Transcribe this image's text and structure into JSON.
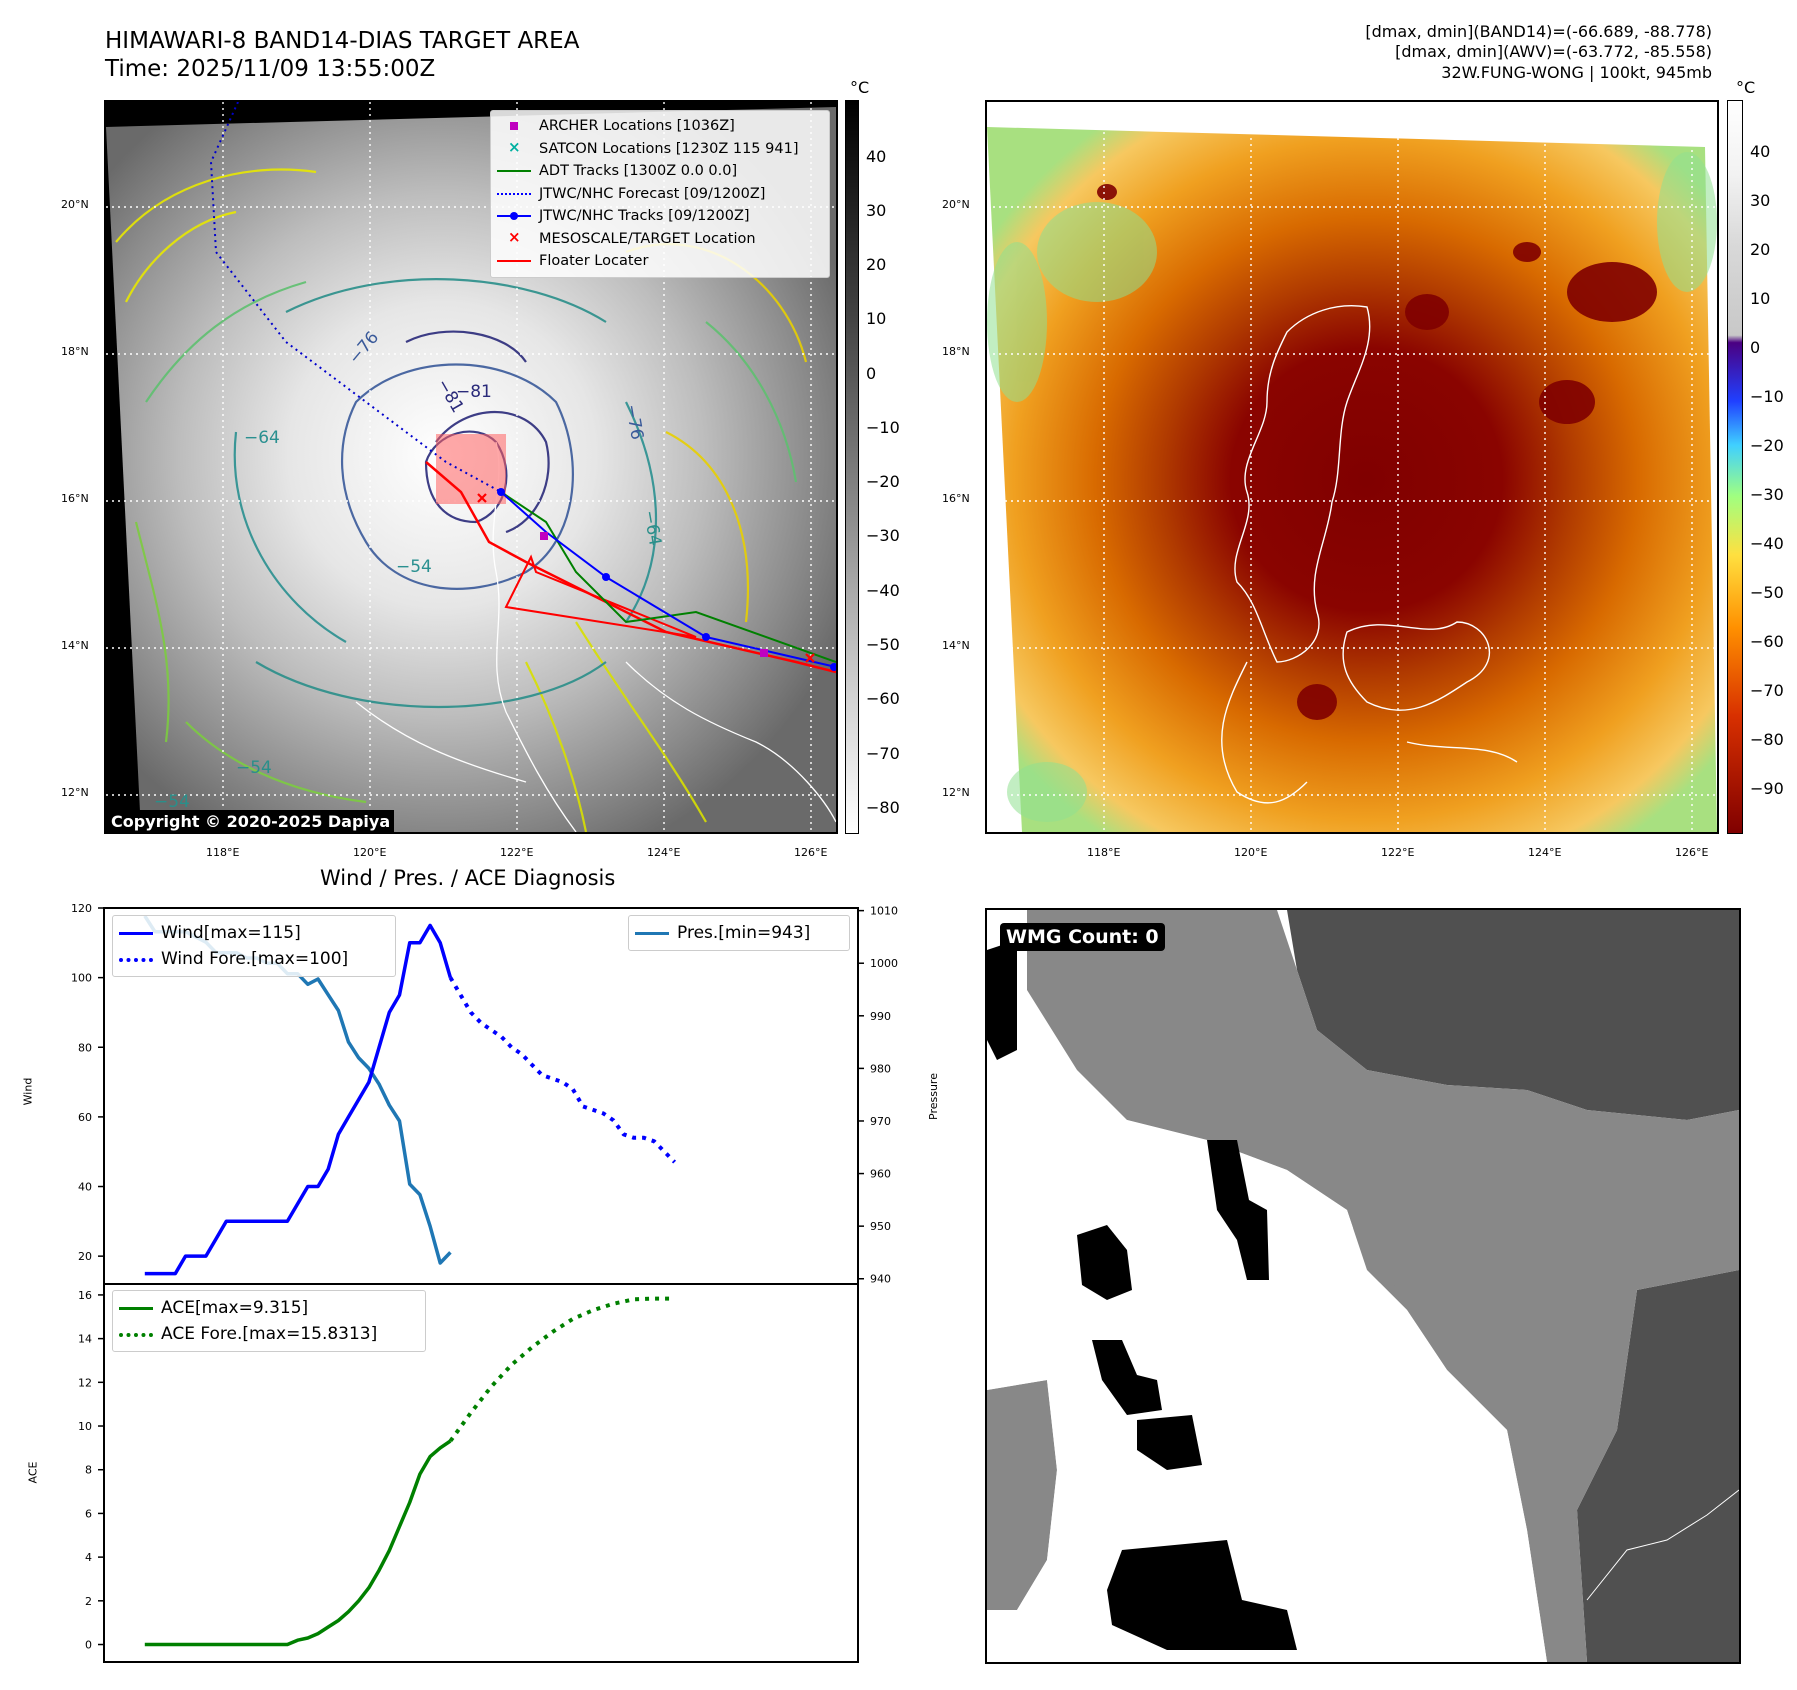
{
  "header": {
    "title_line1": "HIMAWARI-8 BAND14-DIAS TARGET AREA",
    "title_line2": "Time: 2025/11/09 13:55:00Z",
    "info_line1": "[dmax, dmin](BAND14)=(-66.689, -88.778)",
    "info_line2": "[dmax, dmin](AWV)=(-63.772, -85.558)",
    "info_line3": "32W.FUNG-WONG | 100kt, 945mb"
  },
  "map_axes": {
    "lon_labels": [
      "118°E",
      "120°E",
      "122°E",
      "124°E",
      "126°E"
    ],
    "lat_labels": [
      "20°N",
      "18°N",
      "16°N",
      "14°N",
      "12°N"
    ]
  },
  "colorbar_gray": {
    "unit": "°C",
    "ticks": [
      "40",
      "30",
      "20",
      "10",
      "0",
      "−10",
      "−20",
      "−30",
      "−40",
      "−50",
      "−60",
      "−70",
      "−80"
    ]
  },
  "colorbar_color": {
    "unit": "°C",
    "ticks": [
      "40",
      "30",
      "20",
      "10",
      "0",
      "−10",
      "−20",
      "−30",
      "−40",
      "−50",
      "−60",
      "−70",
      "−80",
      "−90"
    ]
  },
  "legend_map": [
    {
      "label": "ARCHER Locations [1036Z]",
      "symbol": "square-marker",
      "color": "#c000c0"
    },
    {
      "label": "SATCON Locations [1230Z 115 941]",
      "symbol": "x-marker",
      "color": "#00b0a0"
    },
    {
      "label": "ADT Tracks [1300Z 0.0 0.0]",
      "symbol": "line",
      "color": "#008000"
    },
    {
      "label": "JTWC/NHC Forecast [09/1200Z]",
      "symbol": "dotted-line",
      "color": "#0000ff"
    },
    {
      "label": "JTWC/NHC Tracks [09/1200Z]",
      "symbol": "line-dot",
      "color": "#0000ff"
    },
    {
      "label": "MESOSCALE/TARGET Location",
      "symbol": "x-marker",
      "color": "#ff0000"
    },
    {
      "label": "Floater Locater",
      "symbol": "line",
      "color": "#ff0000"
    }
  ],
  "contour_labels": [
    "−81",
    "−76",
    "−81",
    "−64",
    "−76",
    "−64",
    "−54",
    "−54",
    "−54"
  ],
  "copyright": "Copyright © 2020-2025 Dapiya",
  "wmg": {
    "label": "WMG Count: 0"
  },
  "chart_data": [
    {
      "type": "line",
      "title": "Wind / Pres. / ACE Diagnosis",
      "ylabel": "Wind",
      "ylim": [
        12,
        120
      ],
      "yticks": [
        20,
        40,
        60,
        80,
        100,
        120
      ],
      "y2label": "Pressure",
      "y2lim": [
        939,
        1010.5
      ],
      "y2ticks": [
        940,
        950,
        960,
        970,
        980,
        990,
        1000,
        1010
      ],
      "x": [
        0,
        1,
        2,
        3,
        4,
        5,
        6,
        7,
        8,
        9,
        10,
        11,
        12,
        13,
        14,
        15,
        16,
        17,
        18,
        19,
        20,
        21,
        22,
        23,
        24,
        25,
        26,
        27,
        28,
        29,
        30,
        31,
        32,
        33,
        34,
        35,
        36,
        37,
        38,
        39,
        40,
        41,
        42,
        43,
        44,
        45,
        46,
        47,
        48,
        49,
        50,
        51,
        52,
        53,
        54
      ],
      "series": [
        {
          "name": "Wind",
          "legend": "Wind[max=115]",
          "axis": "left",
          "color": "#0000ff",
          "style": "solid",
          "x": [
            0,
            2,
            3,
            4,
            5,
            6,
            7,
            8,
            9,
            10,
            11,
            12,
            13,
            14,
            15,
            16,
            17,
            18,
            19,
            20,
            21,
            22,
            23,
            24,
            25,
            26,
            27,
            28,
            29,
            30
          ],
          "values": [
            15,
            15,
            15,
            20,
            20,
            20,
            25,
            30,
            30,
            30,
            30,
            30,
            30,
            30,
            35,
            40,
            40,
            45,
            55,
            60,
            65,
            70,
            80,
            90,
            95,
            110,
            110,
            115,
            110,
            100
          ]
        },
        {
          "name": "Wind Fore.",
          "legend": "Wind Fore.[max=100]",
          "axis": "left",
          "color": "#0000ff",
          "style": "dotted",
          "x": [
            30,
            31,
            32,
            33,
            34,
            35,
            36,
            37,
            38,
            39,
            40,
            41,
            42,
            43,
            44,
            45,
            46,
            47,
            48,
            49,
            50,
            51,
            52
          ],
          "values": [
            100,
            95,
            90,
            87,
            85,
            83,
            80,
            78,
            75,
            72,
            71,
            70,
            68,
            63,
            62,
            61,
            59,
            55,
            54,
            54,
            53,
            50,
            47
          ]
        },
        {
          "name": "Pres.",
          "legend": "Pres.[min=943]",
          "axis": "right",
          "color": "#1f77b4",
          "style": "solid",
          "x": [
            0,
            1,
            2,
            3,
            4,
            5,
            6,
            7,
            8,
            9,
            10,
            11,
            12,
            13,
            14,
            15,
            16,
            17,
            18,
            19,
            20,
            21,
            22,
            23,
            24,
            25,
            26,
            27,
            28,
            29,
            30
          ],
          "values": [
            1009,
            1006,
            1006,
            1006,
            1006,
            1005,
            1004,
            1002,
            1002,
            1002,
            1001,
            1001,
            1000,
            1000,
            998,
            998,
            996,
            997,
            994,
            991,
            985,
            982,
            980,
            977,
            973,
            970,
            958,
            956,
            950,
            943,
            945
          ]
        }
      ]
    },
    {
      "type": "line",
      "ylabel": "ACE",
      "ylim": [
        -0.8,
        16.5
      ],
      "yticks": [
        0,
        2,
        4,
        6,
        8,
        10,
        12,
        14,
        16
      ],
      "series": [
        {
          "name": "ACE",
          "legend": "ACE[max=9.315]",
          "color": "#008000",
          "style": "solid",
          "x": [
            0,
            2,
            4,
            6,
            8,
            10,
            12,
            14,
            15,
            16,
            17,
            18,
            19,
            20,
            21,
            22,
            23,
            24,
            25,
            26,
            27,
            28,
            29,
            30
          ],
          "values": [
            0,
            0,
            0,
            0,
            0,
            0,
            0,
            0,
            0.2,
            0.3,
            0.5,
            0.8,
            1.1,
            1.5,
            2.0,
            2.6,
            3.4,
            4.3,
            5.4,
            6.5,
            7.8,
            8.6,
            9.0,
            9.315
          ]
        },
        {
          "name": "ACE Fore.",
          "legend": "ACE Fore.[max=15.8313]",
          "color": "#008000",
          "style": "dotted",
          "x": [
            30,
            32,
            34,
            36,
            38,
            40,
            42,
            44,
            46,
            48,
            50,
            52
          ],
          "values": [
            9.315,
            10.6,
            11.8,
            12.8,
            13.6,
            14.3,
            14.9,
            15.3,
            15.6,
            15.8,
            15.83,
            15.83
          ]
        }
      ]
    }
  ]
}
